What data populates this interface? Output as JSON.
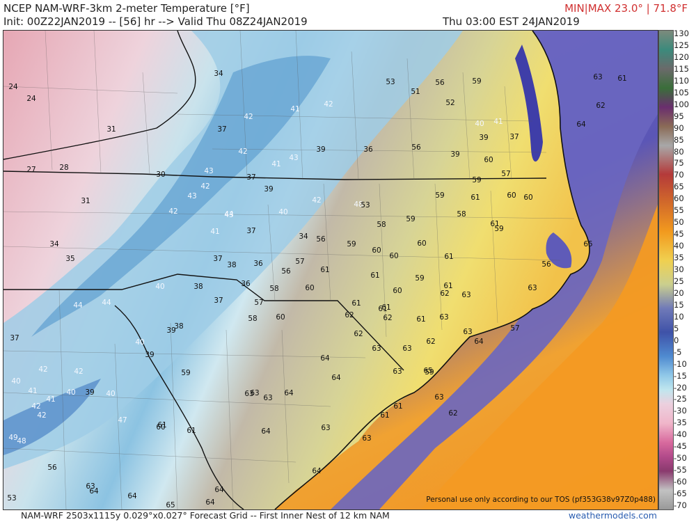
{
  "header": {
    "title": "NCEP NAM-WRF-3km 2-meter Temperature [°F]",
    "init": "Init: 00Z22JAN2019 -- [56] hr --> Valid Thu 08Z24JAN2019",
    "minmax": "MIN|MAX 23.0° | 71.8°F",
    "valid_local": "Thu 03:00 EST 24JAN2019"
  },
  "map": {
    "data_values": [
      {
        "v": "24"
      },
      {
        "v": "24"
      },
      {
        "v": "31"
      },
      {
        "v": "27"
      },
      {
        "v": "28"
      },
      {
        "v": "30"
      },
      {
        "v": "31"
      },
      {
        "v": "34"
      },
      {
        "v": "35"
      },
      {
        "v": "37"
      },
      {
        "v": "42"
      },
      {
        "v": "41"
      },
      {
        "v": "40"
      },
      {
        "v": "42"
      },
      {
        "v": "41"
      },
      {
        "v": "40"
      },
      {
        "v": "39"
      },
      {
        "v": "40"
      },
      {
        "v": "42"
      },
      {
        "v": "42"
      },
      {
        "v": "49"
      },
      {
        "v": "48"
      },
      {
        "v": "47"
      },
      {
        "v": "56"
      },
      {
        "v": "53"
      },
      {
        "v": "63"
      },
      {
        "v": "64"
      },
      {
        "v": "64"
      },
      {
        "v": "65"
      },
      {
        "v": "64"
      },
      {
        "v": "64"
      },
      {
        "v": "34"
      },
      {
        "v": "37"
      },
      {
        "v": "42"
      },
      {
        "v": "41"
      },
      {
        "v": "42"
      },
      {
        "v": "41"
      },
      {
        "v": "39"
      },
      {
        "v": "37"
      },
      {
        "v": "42"
      },
      {
        "v": "43"
      },
      {
        "v": "42"
      },
      {
        "v": "43"
      },
      {
        "v": "42"
      },
      {
        "v": "43"
      },
      {
        "v": "43"
      },
      {
        "v": "44"
      },
      {
        "v": "41"
      },
      {
        "v": "37"
      },
      {
        "v": "40"
      },
      {
        "v": "34"
      },
      {
        "v": "37"
      },
      {
        "v": "38"
      },
      {
        "v": "36"
      },
      {
        "v": "36"
      },
      {
        "v": "40"
      },
      {
        "v": "38"
      },
      {
        "v": "37"
      },
      {
        "v": "44"
      },
      {
        "v": "44"
      },
      {
        "v": "40"
      },
      {
        "v": "39"
      },
      {
        "v": "38"
      },
      {
        "v": "39"
      },
      {
        "v": "59"
      },
      {
        "v": "39"
      },
      {
        "v": "36"
      },
      {
        "v": "42"
      },
      {
        "v": "48"
      },
      {
        "v": "56"
      },
      {
        "v": "56"
      },
      {
        "v": "57"
      },
      {
        "v": "56"
      },
      {
        "v": "58"
      },
      {
        "v": "57"
      },
      {
        "v": "58"
      },
      {
        "v": "60"
      },
      {
        "v": "60"
      },
      {
        "v": "61"
      },
      {
        "v": "59"
      },
      {
        "v": "58"
      },
      {
        "v": "60"
      },
      {
        "v": "59"
      },
      {
        "v": "60"
      },
      {
        "v": "59"
      },
      {
        "v": "61"
      },
      {
        "v": "61"
      },
      {
        "v": "60"
      },
      {
        "v": "59"
      },
      {
        "v": "58"
      },
      {
        "v": "60"
      },
      {
        "v": "61"
      },
      {
        "v": "61"
      },
      {
        "v": "61"
      },
      {
        "v": "61"
      },
      {
        "v": "62"
      },
      {
        "v": "61"
      },
      {
        "v": "62"
      },
      {
        "v": "62"
      },
      {
        "v": "61"
      },
      {
        "v": "62"
      },
      {
        "v": "63"
      },
      {
        "v": "63"
      },
      {
        "v": "63"
      },
      {
        "v": "62"
      },
      {
        "v": "63"
      },
      {
        "v": "63"
      },
      {
        "v": "64"
      },
      {
        "v": "63"
      },
      {
        "v": "64"
      },
      {
        "v": "64"
      },
      {
        "v": "65"
      },
      {
        "v": "63"
      },
      {
        "v": "63"
      },
      {
        "v": "63"
      },
      {
        "v": "64"
      },
      {
        "v": "61"
      },
      {
        "v": "63"
      },
      {
        "v": "61"
      },
      {
        "v": "63"
      },
      {
        "v": "64"
      },
      {
        "v": "64"
      },
      {
        "v": "63"
      },
      {
        "v": "61"
      },
      {
        "v": "61"
      },
      {
        "v": "60"
      },
      {
        "v": "61"
      },
      {
        "v": "60"
      },
      {
        "v": "60"
      },
      {
        "v": "59"
      },
      {
        "v": "59"
      },
      {
        "v": "57"
      },
      {
        "v": "60"
      },
      {
        "v": "37"
      },
      {
        "v": "39"
      },
      {
        "v": "39"
      },
      {
        "v": "41"
      },
      {
        "v": "40"
      },
      {
        "v": "52"
      },
      {
        "v": "56"
      },
      {
        "v": "51"
      },
      {
        "v": "53"
      },
      {
        "v": "53"
      },
      {
        "v": "59"
      },
      {
        "v": "63"
      },
      {
        "v": "61"
      },
      {
        "v": "62"
      },
      {
        "v": "64"
      },
      {
        "v": "65"
      },
      {
        "v": "56"
      },
      {
        "v": "63"
      },
      {
        "v": "57"
      },
      {
        "v": "59"
      },
      {
        "v": "62"
      }
    ]
  },
  "colorbar": {
    "labels": [
      "130",
      "125",
      "120",
      "115",
      "110",
      "105",
      "100",
      "95",
      "90",
      "85",
      "80",
      "75",
      "70",
      "65",
      "60",
      "55",
      "50",
      "45",
      "40",
      "35",
      "30",
      "25",
      "20",
      "15",
      "10",
      "5",
      "0",
      "-5",
      "-10",
      "-15",
      "-20",
      "-25",
      "-30",
      "-35",
      "-40",
      "-45",
      "-50",
      "-55",
      "-60",
      "-65",
      "-70"
    ]
  },
  "footer": {
    "left": "NAM-WRF 2503x1115y 0.029°x0.027° Forecast Grid -- First Inner Nest of 12 km NAM",
    "right": "weathermodels.com",
    "tos": "Personal use only according to our TOS (pf353G38v97Z0p488)"
  }
}
